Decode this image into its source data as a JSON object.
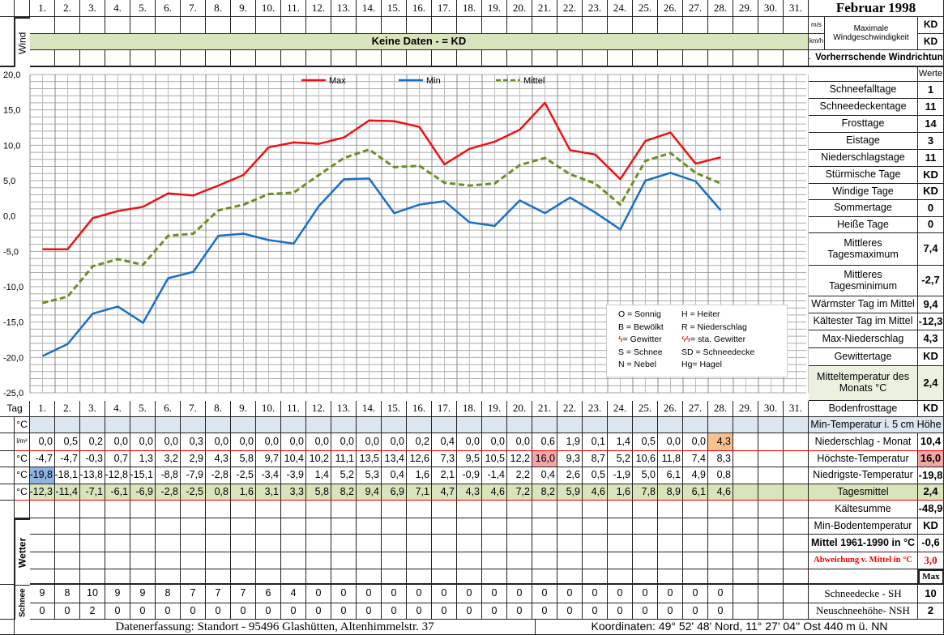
{
  "title": "Februar 1998",
  "days": [
    "1.",
    "2.",
    "3.",
    "4.",
    "5.",
    "6.",
    "7.",
    "8.",
    "9.",
    "10.",
    "11.",
    "12.",
    "13.",
    "14.",
    "15.",
    "16.",
    "17.",
    "18.",
    "19.",
    "20.",
    "21.",
    "22.",
    "23.",
    "24.",
    "25.",
    "26.",
    "27.",
    "28.",
    "29.",
    "30.",
    "31."
  ],
  "wind": {
    "label": "Wind",
    "no_data": "Keine Daten -  = KD",
    "unit_ms": "m/s",
    "unit_kmh": "km/h",
    "max_label": "Maximale Windgeschwindigkeit",
    "max_ms": "KD",
    "max_kmh": "KD",
    "direction": "← Vorherrschende Windrichtung"
  },
  "stats": {
    "header": "Werte",
    "items": [
      {
        "label": "Schneefalltage",
        "value": "1"
      },
      {
        "label": "Schneedeckentage",
        "value": "11"
      },
      {
        "label": "Frosttage",
        "value": "14"
      },
      {
        "label": "Eistage",
        "value": "3"
      },
      {
        "label": "Niederschlagstage",
        "value": "11"
      },
      {
        "label": "Stürmische Tage",
        "value": "KD"
      },
      {
        "label": "Windige Tage",
        "value": "KD"
      },
      {
        "label": "Sommertage",
        "value": "0"
      },
      {
        "label": "Heiße Tage",
        "value": "0"
      },
      {
        "label": "Mittleres Tagesmaximum",
        "value": "7,4"
      },
      {
        "label": "Mittleres Tagesminimum",
        "value": "-2,7"
      },
      {
        "label": "Wärmster Tag im Mittel",
        "value": "9,4"
      },
      {
        "label": "Kältester Tag im Mittel",
        "value": "-12,3"
      },
      {
        "label": "Max-Niederschlag",
        "value": "4,3"
      },
      {
        "label": "Gewittertage",
        "value": "KD"
      },
      {
        "label": "Mitteltemperatur des Monats °C",
        "value": "2,4"
      },
      {
        "label": "Bodenfrosttage",
        "value": "KD"
      }
    ]
  },
  "table": {
    "tag_label": "Tag",
    "rows": [
      {
        "unit": "°C",
        "label": "Min-Temperatur i. 5 cm Höhe",
        "total": "",
        "values": []
      },
      {
        "unit": "l/m²",
        "label": "Niederschlag - Monat",
        "total": "10,4",
        "values": [
          "0,0",
          "0,5",
          "0,2",
          "0,0",
          "0,0",
          "0,0",
          "0,3",
          "0,0",
          "0,0",
          "0,0",
          "0,0",
          "0,0",
          "0,0",
          "0,0",
          "0,0",
          "0,2",
          "0,4",
          "0,0",
          "0,0",
          "0,0",
          "0,6",
          "1,9",
          "0,1",
          "1,4",
          "0,5",
          "0,0",
          "0,0",
          "4,3"
        ]
      },
      {
        "unit": "°C",
        "label": "Höchste-Temperatur",
        "total": "16,0",
        "values": [
          "-4,7",
          "-4,7",
          "-0,3",
          "0,7",
          "1,3",
          "3,2",
          "2,9",
          "4,3",
          "5,8",
          "9,7",
          "10,4",
          "10,2",
          "11,1",
          "13,5",
          "13,4",
          "12,6",
          "7,3",
          "9,5",
          "10,5",
          "12,2",
          "16,0",
          "9,3",
          "8,7",
          "5,2",
          "10,6",
          "11,8",
          "7,4",
          "8,3"
        ]
      },
      {
        "unit": "°C",
        "label": "Niedrigste-Temperatur",
        "total": "-19,8",
        "values": [
          "-19,8",
          "-18,1",
          "-13,8",
          "-12,8",
          "-15,1",
          "-8,8",
          "-7,9",
          "-2,8",
          "-2,5",
          "-3,4",
          "-3,9",
          "1,4",
          "5,2",
          "5,3",
          "0,4",
          "1,6",
          "2,1",
          "-0,9",
          "-1,4",
          "2,2",
          "0,4",
          "2,6",
          "0,5",
          "-1,9",
          "5,0",
          "6,1",
          "4,9",
          "0,8"
        ]
      },
      {
        "unit": "°C",
        "label": "Tagesmittel",
        "total": "2,4",
        "values": [
          "-12,3",
          "-11,4",
          "-7,1",
          "-6,1",
          "-6,9",
          "-2,8",
          "-2,5",
          "0,8",
          "1,6",
          "3,1",
          "3,3",
          "5,8",
          "8,2",
          "9,4",
          "6,9",
          "7,1",
          "4,7",
          "4,3",
          "4,6",
          "7,2",
          "8,2",
          "5,9",
          "4,6",
          "1,6",
          "7,8",
          "8,9",
          "6,1",
          "4,6"
        ]
      }
    ],
    "kaeltesumme_label": "Kältesumme",
    "kaeltesumme": "-48,9",
    "wetter_label": "Wetter",
    "min_boden_label": "Min-Bodentemperatur",
    "min_boden": "KD",
    "mittel_label": "Mittel 1961-1990 in °C",
    "mittel": "-0,6",
    "abw_label": "Abweichung v. Mittel in °C",
    "abw": "3,0",
    "max_label": "Max",
    "schnee_label": "Schnee",
    "sh_label": "Schneedecke -   SH",
    "sh_max": "10",
    "sh": [
      "9",
      "8",
      "10",
      "9",
      "9",
      "8",
      "7",
      "7",
      "7",
      "6",
      "4",
      "0",
      "0",
      "0",
      "0",
      "0",
      "0",
      "0",
      "0",
      "0",
      "0",
      "0",
      "0",
      "0",
      "0",
      "0",
      "0",
      "0"
    ],
    "nsh_label": "Neuschneehöhe- NSH",
    "nsh_max": "2",
    "nsh": [
      "0",
      "0",
      "2",
      "0",
      "0",
      "0",
      "0",
      "0",
      "0",
      "0",
      "0",
      "0",
      "0",
      "0",
      "0",
      "0",
      "0",
      "0",
      "0",
      "0",
      "0",
      "0",
      "0",
      "0",
      "0",
      "0",
      "0",
      "0"
    ]
  },
  "footer": {
    "left": "Datenerfassung:  Standort -  95496  Glashütten, Altenhimmelstr. 37",
    "right": "Koordinaten:  49° 52' 48' Nord,   11° 27' 04'' Ost   440 m ü. NN"
  },
  "legend": [
    "O = Sonnig",
    "H = Heiter",
    "B = Bewölkt",
    "R = Niederschlag",
    "= Gewitter",
    "= sta. Gewitter",
    "S = Schnee",
    "SD = Schneedecke",
    "N = Nebel",
    "Hg= Hagel"
  ],
  "colors": {
    "max": "#ee1111",
    "min": "#1a6fc4",
    "mittel": "#6b8e23",
    "green": "#d8e4bc",
    "blue": "#dce6f1",
    "hl_min": "#8db4e2",
    "hl_max": "#f4a6a6",
    "hl_rain": "#f9bf8f"
  },
  "chart_data": {
    "type": "line",
    "title": "",
    "xlabel": "Tag",
    "ylabel": "°C",
    "ylim": [
      -25,
      20
    ],
    "yticks": [
      "20,0",
      "15,0",
      "10,0",
      "5,0",
      "0,0",
      "-5,0",
      "-10,0",
      "-15,0",
      "-20,0",
      "-25,0"
    ],
    "x": [
      1,
      2,
      3,
      4,
      5,
      6,
      7,
      8,
      9,
      10,
      11,
      12,
      13,
      14,
      15,
      16,
      17,
      18,
      19,
      20,
      21,
      22,
      23,
      24,
      25,
      26,
      27,
      28
    ],
    "legend_position": "top",
    "series": [
      {
        "name": "Max",
        "values": [
          -4.7,
          -4.7,
          -0.3,
          0.7,
          1.3,
          3.2,
          2.9,
          4.3,
          5.8,
          9.7,
          10.4,
          10.2,
          11.1,
          13.5,
          13.4,
          12.6,
          7.3,
          9.5,
          10.5,
          12.2,
          16.0,
          9.3,
          8.7,
          5.2,
          10.6,
          11.8,
          7.4,
          8.3
        ]
      },
      {
        "name": "Min",
        "values": [
          -19.8,
          -18.1,
          -13.8,
          -12.8,
          -15.1,
          -8.8,
          -7.9,
          -2.8,
          -2.5,
          -3.4,
          -3.9,
          1.4,
          5.2,
          5.3,
          0.4,
          1.6,
          2.1,
          -0.9,
          -1.4,
          2.2,
          0.4,
          2.6,
          0.5,
          -1.9,
          5.0,
          6.1,
          4.9,
          0.8
        ]
      },
      {
        "name": "Mittel",
        "values": [
          -12.3,
          -11.4,
          -7.1,
          -6.1,
          -6.9,
          -2.8,
          -2.5,
          0.8,
          1.6,
          3.1,
          3.3,
          5.8,
          8.2,
          9.4,
          6.9,
          7.1,
          4.7,
          4.3,
          4.6,
          7.2,
          8.2,
          5.9,
          4.6,
          1.6,
          7.8,
          8.9,
          6.1,
          4.6
        ]
      }
    ]
  }
}
